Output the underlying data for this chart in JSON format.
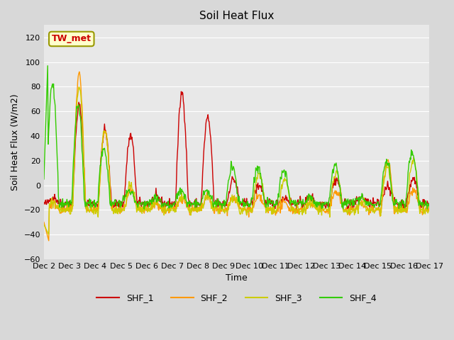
{
  "title": "Soil Heat Flux",
  "xlabel": "Time",
  "ylabel": "Soil Heat Flux (W/m2)",
  "ylim": [
    -60,
    130
  ],
  "yticks": [
    -60,
    -40,
    -20,
    0,
    20,
    40,
    60,
    80,
    100,
    120
  ],
  "colors": {
    "SHF_1": "#cc0000",
    "SHF_2": "#ff9900",
    "SHF_3": "#cccc00",
    "SHF_4": "#33cc00"
  },
  "fig_bg": "#d8d8d8",
  "ax_bg": "#e8e8e8",
  "annotation_text": "TW_met",
  "annotation_box_color": "#ffffcc",
  "annotation_border_color": "#999900",
  "annotation_text_color": "#cc0000",
  "xtick_labels": [
    "Dec 2",
    "Dec 3",
    "Dec 4",
    "Dec 5",
    "Dec 6",
    "Dec 7",
    "Dec 8",
    "Dec 9",
    "Dec 10",
    "Dec 11",
    "Dec 12",
    "Dec 13",
    "Dec 14",
    "Dec 15",
    "Dec 16",
    "Dec 17"
  ],
  "n_points_per_day": 48,
  "n_days": 15,
  "linewidth": 1.0
}
